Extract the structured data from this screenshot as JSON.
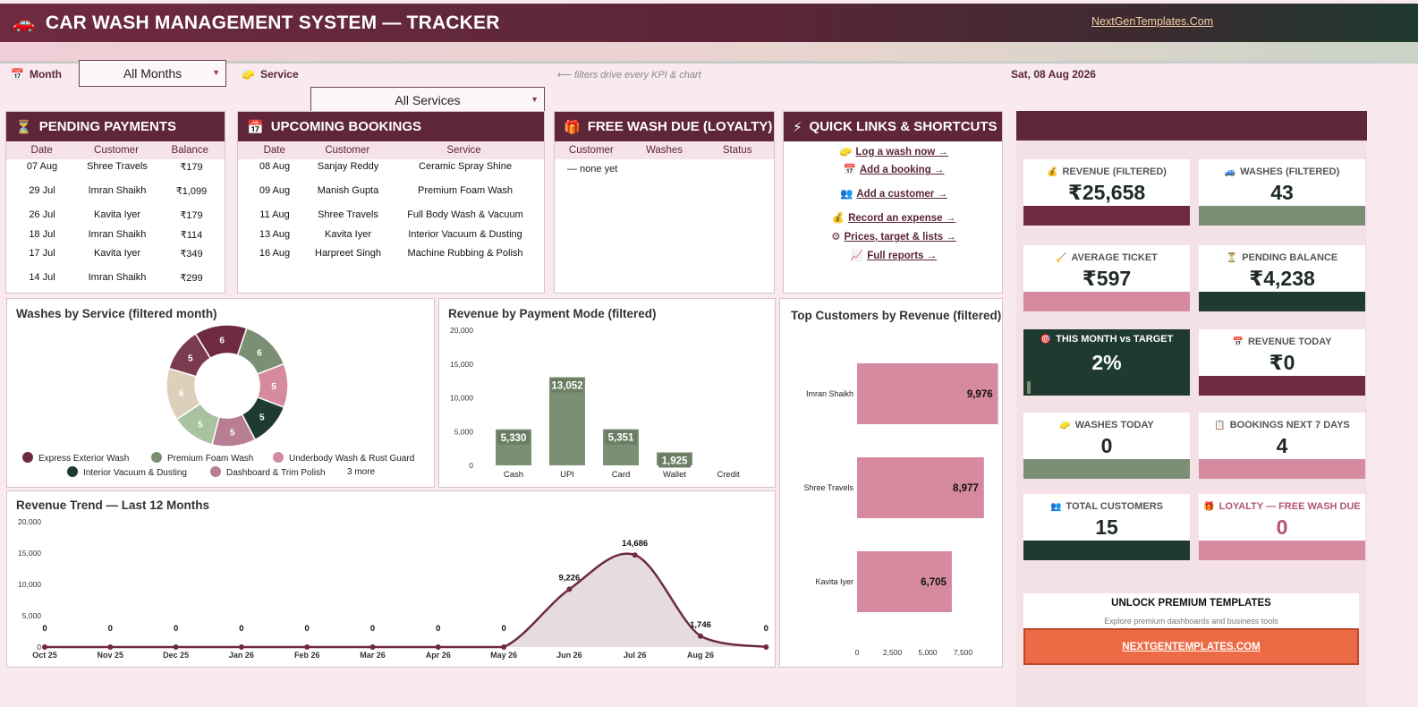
{
  "header": {
    "icon": "car-icon",
    "title": "CAR WASH MANAGEMENT SYSTEM — TRACKER",
    "link": "NextGenTemplates.Com"
  },
  "filters": {
    "month_label": "Month",
    "month_value": "All Months",
    "service_label": "Service",
    "service_value": "All Services",
    "hint": "⟵ filters drive every KPI & chart",
    "date": "Sat, 08 Aug 2026"
  },
  "pending": {
    "title": "PENDING PAYMENTS",
    "cols": [
      "Date",
      "Customer",
      "Balance"
    ],
    "rows": [
      [
        "07 Aug",
        "Shree Travels",
        "₹179"
      ],
      [
        "29 Jul",
        "Imran Shaikh",
        "₹1,099"
      ],
      [
        "26 Jul",
        "Kavita Iyer",
        "₹179"
      ],
      [
        "18 Jul",
        "Imran Shaikh",
        "₹114"
      ],
      [
        "17 Jul",
        "Kavita Iyer",
        "₹349"
      ],
      [
        "14 Jul",
        "Imran Shaikh",
        "₹299"
      ]
    ]
  },
  "bookings": {
    "title": "UPCOMING BOOKINGS",
    "cols": [
      "Date",
      "Customer",
      "Service"
    ],
    "rows": [
      [
        "08 Aug",
        "Sanjay Reddy",
        "Ceramic Spray Shine"
      ],
      [
        "09 Aug",
        "Manish Gupta",
        "Premium Foam Wash"
      ],
      [
        "11 Aug",
        "Shree Travels",
        "Full Body Wash & Vacuum"
      ],
      [
        "13 Aug",
        "Kavita Iyer",
        "Interior Vacuum & Dusting"
      ],
      [
        "16 Aug",
        "Harpreet Singh",
        "Machine Rubbing & Polish"
      ]
    ]
  },
  "loyalty": {
    "title": "FREE WASH DUE (LOYALTY)",
    "cols": [
      "Customer",
      "Washes",
      "Status"
    ],
    "empty": "— none yet"
  },
  "quicklinks": {
    "title": "QUICK LINKS & SHORTCUTS",
    "items": [
      {
        "icon": "🧽",
        "label": "Log a wash now →"
      },
      {
        "icon": "📅",
        "label": "Add a booking →"
      },
      {
        "icon": "👥",
        "label": "Add a customer →"
      },
      {
        "icon": "💰",
        "label": "Record an expense →"
      },
      {
        "icon": "⚙",
        "label": "Prices, target & lists →"
      },
      {
        "icon": "📈",
        "label": "Full reports →"
      }
    ]
  },
  "kpis": [
    {
      "label": "REVENUE (FILTERED)",
      "icon": "💰",
      "value": "₹25,658",
      "color": "#6e2a40"
    },
    {
      "label": "WASHES (FILTERED)",
      "icon": "🚙",
      "value": "43",
      "color": "#7b8f74"
    },
    {
      "label": "AVERAGE TICKET",
      "icon": "🧹",
      "value": "₹597",
      "color": "#d68aa0"
    },
    {
      "label": "PENDING BALANCE",
      "icon": "⏳",
      "value": "₹4,238",
      "color": "#1f3a2e"
    },
    {
      "label": "THIS MONTH vs TARGET",
      "icon": "🎯",
      "value": "2%",
      "color": "#1f3a2e",
      "progress": 0.02
    },
    {
      "label": "REVENUE TODAY",
      "icon": "📅",
      "value": "₹0",
      "color": "#6e2a40"
    },
    {
      "label": "WASHES TODAY",
      "icon": "🧽",
      "value": "0",
      "color": "#7b8f74"
    },
    {
      "label": "BOOKINGS NEXT 7 DAYS",
      "icon": "📋",
      "value": "4",
      "color": "#d68aa0"
    },
    {
      "label": "TOTAL CUSTOMERS",
      "icon": "👥",
      "value": "15",
      "color": "#1f3a2e"
    },
    {
      "label": "LOYALTY — FREE WASH DUE",
      "icon": "🎁",
      "value": "0",
      "color": "#d68aa0"
    }
  ],
  "promo": {
    "title": "UNLOCK PREMIUM TEMPLATES",
    "sub": "Explore premium dashboards and business tools",
    "button": "NEXTGENTEMPLATES.COM"
  },
  "chart_data": [
    {
      "type": "pie",
      "title": "Washes by Service (filtered month)",
      "slices": [
        6,
        6,
        5,
        5,
        5,
        5,
        6,
        5
      ],
      "colors": [
        "#6e2a40",
        "#7b8f74",
        "#d68aa0",
        "#1f3a2e",
        "#b87f94",
        "#a9c2a0",
        "#ddd0bb",
        "#7a3a50"
      ],
      "legend": [
        "Express Exterior Wash",
        "Premium Foam Wash",
        "Underbody Wash & Rust Guard",
        "Interior Vacuum & Dusting",
        "Dashboard & Trim Polish"
      ],
      "legend_colors": [
        "#6e2a40",
        "#7b8f74",
        "#d68aa0",
        "#1f3a2e",
        "#b87f94"
      ],
      "more": "3 more"
    },
    {
      "type": "bar",
      "title": "Revenue by Payment Mode (filtered)",
      "categories": [
        "Cash",
        "UPI",
        "Card",
        "Wallet",
        "Credit"
      ],
      "values": [
        5330,
        13052,
        5351,
        1925,
        0
      ],
      "labels": [
        "5,330",
        "13,052",
        "5,351",
        "1,925",
        ""
      ],
      "yticks": [
        "20,000",
        "15,000",
        "10,000",
        "5,000",
        "0"
      ],
      "ylim": [
        0,
        20000
      ],
      "color": "#7b8f74"
    },
    {
      "type": "bar",
      "orientation": "horizontal",
      "title": "Top Customers by Revenue (filtered)",
      "categories": [
        "Imran Shaikh",
        "Shree Travels",
        "Kavita Iyer"
      ],
      "values": [
        9976,
        8977,
        6705
      ],
      "labels": [
        "9,976",
        "8,977",
        "6,705"
      ],
      "xticks": [
        "0",
        "2,500",
        "5,000",
        "7,500"
      ],
      "xlim": [
        0,
        10000
      ],
      "color": "#d68aa0"
    },
    {
      "type": "area",
      "title": "Revenue Trend — Last 12 Months",
      "categories": [
        "Oct 25",
        "Nov 25",
        "Dec 25",
        "Jan 26",
        "Feb 26",
        "Mar 26",
        "Apr 26",
        "May 26",
        "Jun 26",
        "Jul 26",
        "Aug 26",
        ""
      ],
      "values": [
        0,
        0,
        0,
        0,
        0,
        0,
        0,
        0,
        9226,
        14686,
        1746,
        0
      ],
      "labels": [
        "0",
        "0",
        "0",
        "0",
        "0",
        "0",
        "0",
        "0",
        "9,226",
        "14,686",
        "1,746",
        "0"
      ],
      "yticks": [
        "20,000",
        "15,000",
        "10,000",
        "5,000",
        "0"
      ],
      "ylim": [
        0,
        20000
      ],
      "color": "#6e2a40"
    }
  ]
}
